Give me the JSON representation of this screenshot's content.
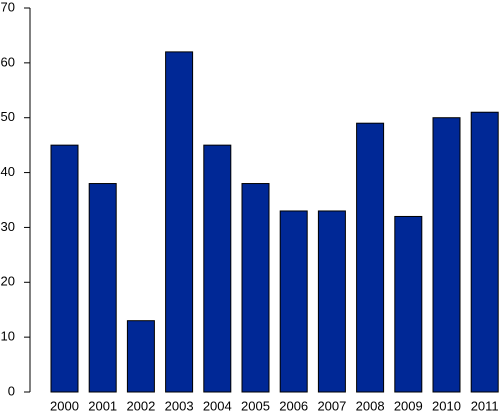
{
  "chart_data": {
    "type": "bar",
    "categories": [
      "2000",
      "2001",
      "2002",
      "2003",
      "2004",
      "2005",
      "2006",
      "2007",
      "2008",
      "2009",
      "2010",
      "2011"
    ],
    "values": [
      45,
      38,
      13,
      62,
      45,
      38,
      33,
      33,
      49,
      32,
      50,
      51
    ],
    "color": "#002896",
    "ylim": [
      0,
      70
    ],
    "yticks": [
      0,
      10,
      20,
      30,
      40,
      50,
      60,
      70
    ],
    "grid": false
  }
}
